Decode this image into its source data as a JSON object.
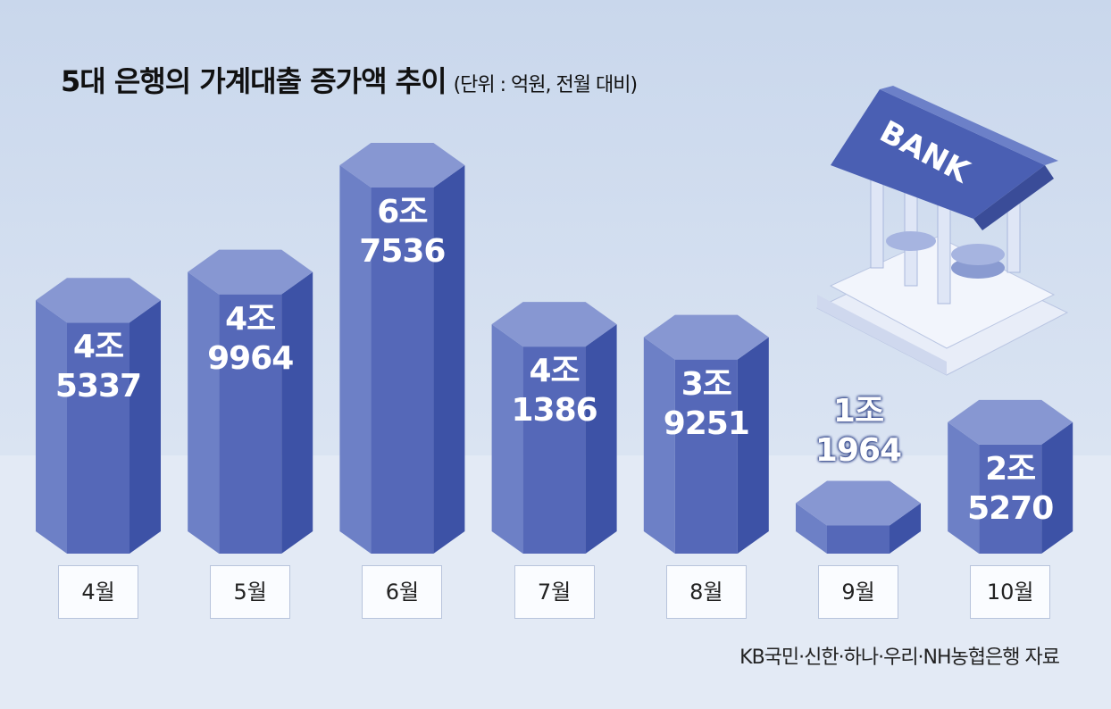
{
  "chart_data": {
    "type": "bar",
    "title": "5대 은행의 가계대출 증가액 추이",
    "subtitle": "(단위 : 억원, 전월 대비)",
    "categories": [
      "4월",
      "5월",
      "6월",
      "7월",
      "8월",
      "9월",
      "10월"
    ],
    "values": [
      45337,
      49964,
      67536,
      41386,
      39251,
      11964,
      25270
    ],
    "value_labels": [
      "4조 5337",
      "4조 9964",
      "6조 7536",
      "4조 1386",
      "3조 9251",
      "1조 1964",
      "2조 5270"
    ],
    "color": "#5568b8",
    "illustration_text": "BANK",
    "source": "KB국민·신한·하나·우리·NH농협은행 자료"
  }
}
